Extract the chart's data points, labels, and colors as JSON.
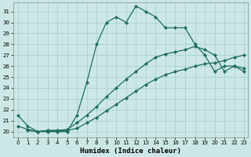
{
  "xlabel": "Humidex (Indice chaleur)",
  "xlim_min": -0.5,
  "xlim_max": 23.4,
  "ylim_min": 19.5,
  "ylim_max": 31.8,
  "xticks": [
    0,
    1,
    2,
    3,
    4,
    5,
    6,
    7,
    8,
    9,
    10,
    11,
    12,
    13,
    14,
    15,
    16,
    17,
    18,
    19,
    20,
    21,
    22,
    23
  ],
  "yticks": [
    20,
    21,
    22,
    23,
    24,
    25,
    26,
    27,
    28,
    29,
    30,
    31
  ],
  "background_color": "#cce8e6",
  "grid_color": "#a2ceca",
  "line_color": "#1e6b60",
  "line_width": 0.9,
  "marker": "D",
  "marker_size": 2.2,
  "line1_x": [
    0,
    1,
    2,
    3,
    4,
    5,
    6,
    7,
    8,
    9,
    10,
    11,
    12,
    13,
    14,
    15,
    16,
    17,
    18,
    19,
    20,
    21,
    22,
    23
  ],
  "line1_y": [
    21.5,
    20.5,
    20.0,
    20.0,
    20.0,
    20.0,
    21.5,
    24.5,
    28.0,
    30.0,
    30.5,
    30.0,
    31.5,
    31.0,
    30.5,
    29.5,
    29.5,
    29.5,
    28.0,
    27.0,
    25.5,
    26.0,
    26.0,
    25.5
  ],
  "line2_x": [
    0,
    1,
    2,
    3,
    4,
    5,
    6,
    7,
    8,
    9,
    10,
    11,
    12,
    13,
    14,
    15,
    16,
    17,
    18,
    19,
    20,
    21,
    22,
    23
  ],
  "line2_y": [
    20.5,
    20.2,
    20.0,
    20.1,
    20.1,
    20.2,
    20.8,
    21.5,
    22.3,
    23.2,
    24.0,
    24.8,
    25.5,
    26.2,
    26.8,
    27.1,
    27.3,
    27.5,
    27.8,
    27.5,
    27.0,
    25.5,
    26.0,
    25.8
  ],
  "line3_x": [
    1,
    2,
    3,
    4,
    5,
    6,
    7,
    8,
    9,
    10,
    11,
    12,
    13,
    14,
    15,
    16,
    17,
    18,
    19,
    20,
    21,
    22,
    23
  ],
  "line3_y": [
    20.1,
    20.0,
    20.1,
    20.1,
    20.1,
    20.3,
    20.8,
    21.3,
    21.9,
    22.5,
    23.1,
    23.7,
    24.3,
    24.8,
    25.2,
    25.5,
    25.7,
    26.0,
    26.2,
    26.3,
    26.5,
    26.8,
    27.0
  ]
}
